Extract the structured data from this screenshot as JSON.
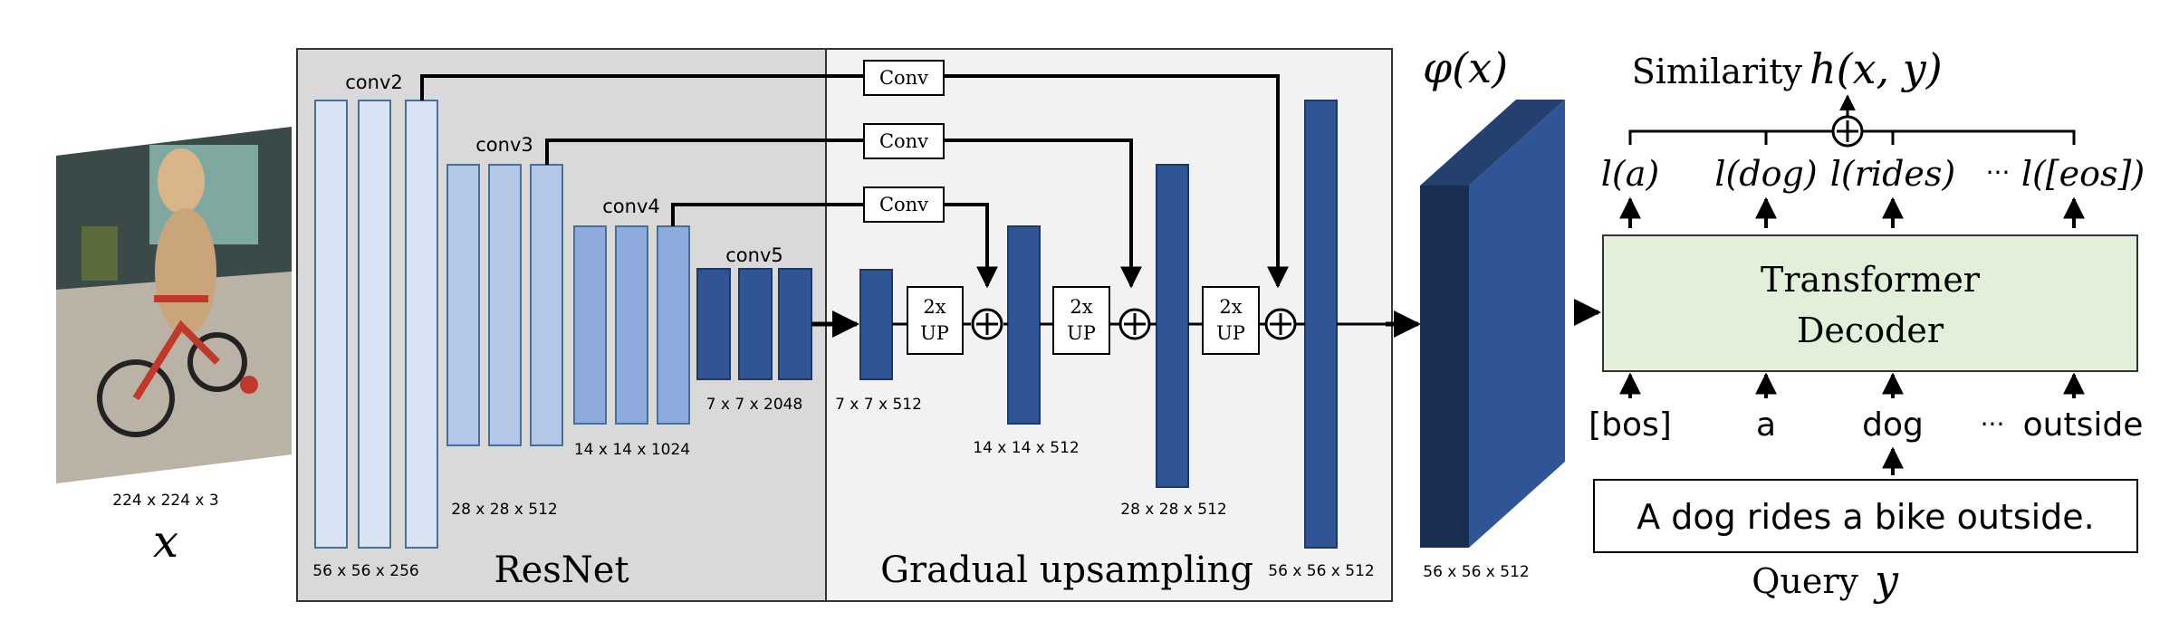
{
  "input": {
    "dims": "224 x 224 x 3",
    "var": "x",
    "photo": "dog riding a bicycle"
  },
  "resnet": {
    "title": "ResNet",
    "stages": [
      {
        "label": "conv2",
        "dims": "56 x 56 x 256"
      },
      {
        "label": "conv3",
        "dims": "28 x 28 x 512"
      },
      {
        "label": "conv4",
        "dims": "14 x 14 x 1024"
      },
      {
        "label": "conv5",
        "dims": "7 x 7 x 2048"
      }
    ]
  },
  "upsampling": {
    "title": "Gradual upsampling",
    "conv_label": "Conv",
    "up_label_1": "2x",
    "up_label_2": "UP",
    "feature_dims": [
      "7 x 7 x 512",
      "14 x 14 x 512",
      "28 x 28 x 512",
      "56 x 56 x 512"
    ]
  },
  "embedding": {
    "label": "φ(x)",
    "dims": "56 x 56 x 512"
  },
  "decoder": {
    "similarity_label": "Similarity",
    "similarity_func": "h(x, y)",
    "output_tokens": [
      "l(a)",
      "l(dog)",
      "l(rides)",
      "···",
      "l([eos])"
    ],
    "title_line1": "Transformer",
    "title_line2": "Decoder",
    "input_tokens": [
      "[bos]",
      "a",
      "dog",
      "···",
      "outside"
    ],
    "query_text": "A dog rides a bike outside.",
    "query_label": "Query",
    "query_var": "y"
  },
  "colors": {
    "resnet_bg": "#d9d9d9",
    "upsample_bg": "#f2f2f2",
    "conv2": "#dae3f3",
    "conv3": "#b4c7e7",
    "conv4": "#8faadc",
    "deep": "#2f5597",
    "embed_front": "#2f5597",
    "embed_side": "#1a2e52",
    "decoder_fill": "#e2efd9"
  }
}
